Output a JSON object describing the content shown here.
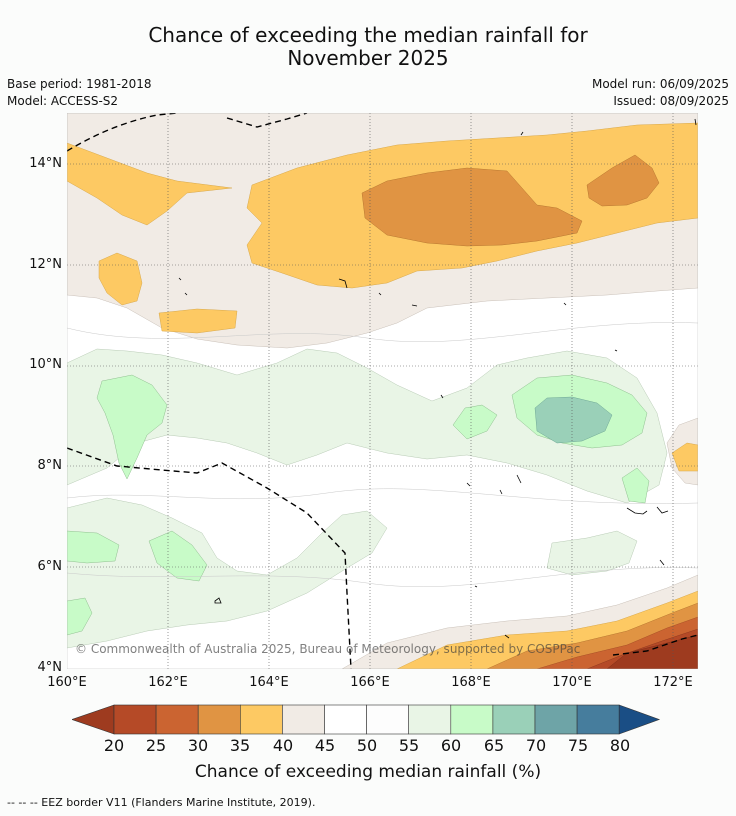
{
  "title_line1": "Chance of exceeding the median rainfall for",
  "title_line2": "November 2025",
  "base_period": "Base period: 1981-2018",
  "model": "Model: ACCESS-S2",
  "model_run": "Model run: 06/09/2025",
  "issued": "Issued: 08/09/2025",
  "copyright": "© Commonwealth of Australia 2025, Bureau of Meteorology, supported by COSPPac",
  "lat_ticks": [
    "14°N",
    "12°N",
    "10°N",
    "8°N",
    "6°N",
    "4°N"
  ],
  "lon_ticks": [
    "160°E",
    "162°E",
    "164°E",
    "166°E",
    "168°E",
    "170°E",
    "172°E"
  ],
  "colorbar": {
    "title": "Chance of exceeding median rainfall (%)",
    "labels": [
      "20",
      "25",
      "30",
      "35",
      "40",
      "45",
      "50",
      "55",
      "60",
      "65",
      "70",
      "75",
      "80"
    ],
    "colors": [
      "#9e3b1f",
      "#b54a27",
      "#cb6431",
      "#e09443",
      "#fdc963",
      "#f1ebe5",
      "#ffffff",
      "#fdfdfd",
      "#e9f5e6",
      "#c8fbc8",
      "#9ad0b8",
      "#6ea4a7",
      "#467d9d",
      "#1a4e85"
    ]
  },
  "footer": "--  --  -- EEZ border V11 (Flanders Marine Institute, 2019).",
  "palette": {
    "c20": "#9e3b1f",
    "c25": "#b54a27",
    "c30": "#cb6431",
    "c35": "#e09443",
    "c40": "#fdc963",
    "c45": "#f1ebe5",
    "c50": "#ffffff",
    "c60": "#e9f5e6",
    "c65": "#c8fbc8",
    "c70": "#9ad0b8"
  }
}
